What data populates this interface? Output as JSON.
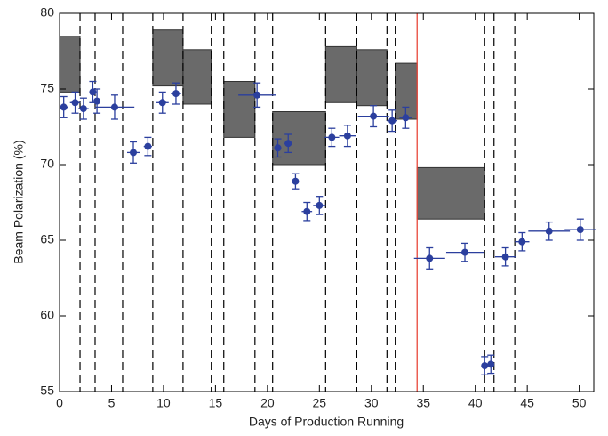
{
  "chart_data": {
    "type": "scatter",
    "xlabel": "Days of Production Running",
    "ylabel": "Beam Polarization (%)",
    "xlim": [
      0,
      51.4
    ],
    "ylim": [
      55,
      80
    ],
    "xticks": [
      0,
      5,
      10,
      15,
      20,
      25,
      30,
      35,
      40,
      45,
      50
    ],
    "yticks": [
      55,
      60,
      65,
      70,
      75,
      80
    ],
    "color": "#2b3f9e",
    "x": [
      0.4,
      1.5,
      2.3,
      3.2,
      3.6,
      5.3,
      7.1,
      8.5,
      9.9,
      11.2,
      19.0,
      21.0,
      22.0,
      22.7,
      23.8,
      25.0,
      26.2,
      27.7,
      30.2,
      32.0,
      33.3,
      35.6,
      39.0,
      40.9,
      41.5,
      42.9,
      44.5,
      47.1,
      50.1
    ],
    "values": [
      73.8,
      74.1,
      73.7,
      74.8,
      74.2,
      73.8,
      70.8,
      71.2,
      74.1,
      74.7,
      74.6,
      71.1,
      71.4,
      68.9,
      66.9,
      67.3,
      71.8,
      71.9,
      73.2,
      72.9,
      73.1,
      63.8,
      64.2,
      56.7,
      56.8,
      63.9,
      64.9,
      65.6,
      65.7
    ],
    "xerr": [
      0.4,
      0.5,
      0.5,
      0.3,
      0.3,
      1.9,
      0.6,
      0.4,
      0.6,
      0.5,
      1.8,
      0.3,
      0.4,
      0.3,
      0.5,
      0.6,
      0.7,
      0.8,
      1.5,
      0.5,
      0.6,
      1.5,
      1.8,
      0.3,
      0.3,
      1,
      0.7,
      2,
      1.5
    ],
    "yerr": [
      0.7,
      0.7,
      0.7,
      0.7,
      0.8,
      0.8,
      0.7,
      0.6,
      0.7,
      0.7,
      0.8,
      0.6,
      0.6,
      0.5,
      0.6,
      0.6,
      0.6,
      0.7,
      0.7,
      0.7,
      0.7,
      0.7,
      0.6,
      0.6,
      0.6,
      0.6,
      0.6,
      0.6,
      0.7
    ],
    "bands": [
      {
        "x": [
          0,
          1.97
        ],
        "y": [
          74.8,
          78.5
        ]
      },
      {
        "x": [
          8.97,
          11.88
        ],
        "y": [
          75.2,
          78.9
        ]
      },
      {
        "x": [
          11.88,
          14.6
        ],
        "y": [
          74.0,
          77.6
        ]
      },
      {
        "x": [
          15.8,
          18.8
        ],
        "y": [
          71.8,
          75.5
        ]
      },
      {
        "x": [
          20.5,
          25.6
        ],
        "y": [
          70.0,
          73.5
        ]
      },
      {
        "x": [
          25.6,
          28.6
        ],
        "y": [
          74.1,
          77.8
        ]
      },
      {
        "x": [
          28.6,
          31.5
        ],
        "y": [
          73.9,
          77.6
        ]
      },
      {
        "x": [
          32.3,
          34.4
        ],
        "y": [
          73.0,
          76.7
        ]
      },
      {
        "x": [
          34.4,
          40.9
        ],
        "y": [
          66.4,
          69.8
        ]
      }
    ],
    "band_color": "#6a6a6a",
    "dividers": [
      1.97,
      3.42,
      6.07,
      8.97,
      11.88,
      14.6,
      15.8,
      18.8,
      20.5,
      25.6,
      28.6,
      31.5,
      32.3,
      40.9,
      41.8,
      43.8
    ],
    "divider_color": "#000000",
    "red_line": {
      "x": 34.4,
      "color": "#e8473a"
    }
  }
}
